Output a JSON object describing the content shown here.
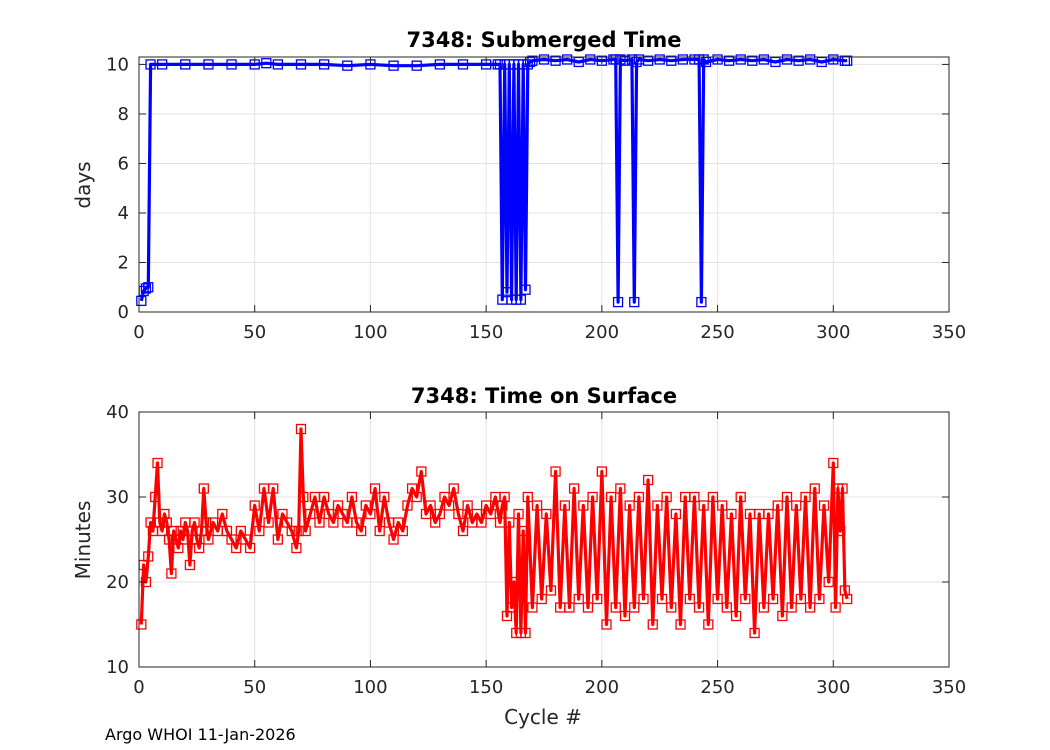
{
  "chart_data": [
    {
      "type": "line",
      "title": "7348: Submerged Time",
      "xlabel": "",
      "ylabel": "days",
      "xlim": [
        0,
        350
      ],
      "ylim": [
        0,
        10.3
      ],
      "xticks": [
        0,
        50,
        100,
        150,
        200,
        250,
        300,
        350
      ],
      "yticks": [
        0,
        2,
        4,
        6,
        8,
        10
      ],
      "grid": true,
      "marker": "square",
      "color": "#0000ff",
      "series": [
        {
          "x": [
            1,
            2,
            3,
            4,
            5,
            10,
            20,
            30,
            40,
            50,
            55,
            60,
            70,
            80,
            90,
            100,
            110,
            120,
            130,
            140,
            150,
            155,
            156,
            157,
            158,
            159,
            160,
            161,
            162,
            163,
            164,
            165,
            166,
            167,
            168,
            169,
            170,
            175,
            180,
            185,
            190,
            195,
            200,
            205,
            206,
            207,
            208,
            210,
            213,
            214,
            215,
            216,
            220,
            225,
            230,
            235,
            240,
            242,
            243,
            244,
            245,
            250,
            255,
            260,
            265,
            270,
            275,
            280,
            285,
            290,
            295,
            300,
            305,
            306
          ],
          "y": [
            0.45,
            0.85,
            0.95,
            1.0,
            10.0,
            10.0,
            10.0,
            10.0,
            10.0,
            10.0,
            10.05,
            10.0,
            10.0,
            10.0,
            9.95,
            10.0,
            9.95,
            9.95,
            10.0,
            10.0,
            10.0,
            10.0,
            10.0,
            0.5,
            10.0,
            0.8,
            10.0,
            0.5,
            10.0,
            0.5,
            10.0,
            0.5,
            10.0,
            0.9,
            10.0,
            10.1,
            10.15,
            10.2,
            10.15,
            10.2,
            10.1,
            10.2,
            10.15,
            10.2,
            10.2,
            0.4,
            10.2,
            10.15,
            10.2,
            0.4,
            10.1,
            10.2,
            10.15,
            10.2,
            10.15,
            10.2,
            10.2,
            10.2,
            0.4,
            10.2,
            10.1,
            10.2,
            10.15,
            10.2,
            10.15,
            10.2,
            10.1,
            10.2,
            10.15,
            10.2,
            10.1,
            10.2,
            10.15,
            10.15
          ]
        }
      ]
    },
    {
      "type": "line",
      "title": "7348: Time on Surface",
      "xlabel": "Cycle #",
      "ylabel": "Minutes",
      "xlim": [
        0,
        350
      ],
      "ylim": [
        10,
        40
      ],
      "xticks": [
        0,
        50,
        100,
        150,
        200,
        250,
        300,
        350
      ],
      "yticks": [
        10,
        20,
        30,
        40
      ],
      "grid": true,
      "marker": "square",
      "color": "#ff0000",
      "series": [
        {
          "x": [
            1,
            2,
            3,
            4,
            5,
            6,
            7,
            8,
            9,
            10,
            11,
            12,
            13,
            14,
            15,
            16,
            17,
            18,
            19,
            20,
            21,
            22,
            23,
            24,
            25,
            26,
            27,
            28,
            29,
            30,
            32,
            34,
            36,
            38,
            40,
            42,
            44,
            46,
            48,
            50,
            52,
            54,
            56,
            58,
            60,
            62,
            64,
            66,
            68,
            69,
            70,
            71,
            72,
            74,
            76,
            78,
            80,
            82,
            84,
            86,
            88,
            90,
            92,
            94,
            96,
            98,
            100,
            102,
            104,
            106,
            108,
            110,
            112,
            114,
            116,
            118,
            120,
            122,
            124,
            126,
            128,
            130,
            132,
            134,
            136,
            138,
            140,
            142,
            144,
            146,
            148,
            150,
            152,
            154,
            156,
            157,
            158,
            159,
            160,
            161,
            162,
            163,
            164,
            165,
            166,
            167,
            168,
            170,
            172,
            174,
            176,
            178,
            180,
            182,
            184,
            186,
            188,
            190,
            192,
            194,
            196,
            198,
            200,
            202,
            204,
            206,
            208,
            210,
            212,
            214,
            216,
            218,
            220,
            222,
            224,
            226,
            228,
            230,
            232,
            234,
            236,
            238,
            240,
            242,
            244,
            246,
            248,
            250,
            252,
            254,
            256,
            258,
            260,
            262,
            264,
            266,
            268,
            270,
            272,
            274,
            276,
            278,
            280,
            282,
            284,
            286,
            288,
            290,
            292,
            294,
            296,
            298,
            300,
            301,
            302,
            303,
            304,
            305,
            306
          ],
          "y": [
            15,
            22,
            20,
            23,
            27,
            26,
            30,
            34,
            27,
            26,
            28,
            27,
            25,
            21,
            26,
            25,
            24,
            26,
            25,
            27,
            26,
            22,
            26,
            27,
            25,
            24,
            26,
            31,
            27,
            25,
            27,
            26,
            28,
            26,
            25,
            24,
            26,
            25,
            24,
            29,
            26,
            31,
            27,
            31,
            25,
            28,
            27,
            26,
            24,
            26,
            38,
            30,
            26,
            28,
            30,
            27,
            30,
            28,
            27,
            29,
            28,
            27,
            30,
            27,
            26,
            29,
            28,
            31,
            26,
            30,
            27,
            25,
            27,
            26,
            29,
            31,
            30,
            33,
            28,
            29,
            27,
            28,
            30,
            29,
            31,
            28,
            26,
            29,
            27,
            28,
            27,
            29,
            28,
            30,
            27,
            29,
            30,
            16,
            27,
            17,
            20,
            14,
            28,
            14,
            26,
            14,
            30,
            17,
            29,
            18,
            28,
            19,
            33,
            17,
            29,
            17,
            31,
            18,
            29,
            17,
            30,
            18,
            33,
            15,
            30,
            17,
            31,
            16,
            29,
            17,
            30,
            18,
            32,
            15,
            29,
            18,
            30,
            17,
            28,
            15,
            30,
            18,
            30,
            17,
            29,
            15,
            30,
            18,
            29,
            17,
            28,
            16,
            30,
            18,
            28,
            14,
            28,
            17,
            28,
            18,
            29,
            16,
            30,
            17,
            29,
            18,
            30,
            17,
            31,
            18,
            29,
            20,
            34,
            17,
            31,
            26,
            31,
            19,
            18
          ]
        }
      ]
    }
  ],
  "footer": "Argo WHOI 11-Jan-2026"
}
